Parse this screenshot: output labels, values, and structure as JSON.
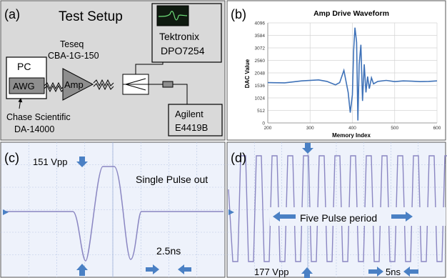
{
  "panels": {
    "a": {
      "label": "(a)",
      "title": "Test Setup",
      "pc": "PC",
      "awg": "AWG",
      "amp": "Amp",
      "amp_maker": "Teseq",
      "amp_model": "CBA-1G-150",
      "scope_maker": "Tektronix",
      "scope_model": "DPO7254",
      "meter_maker": "Agilent",
      "meter_model": "E4419B",
      "awg_maker": "Chase Scientific",
      "awg_model": "DA-14000"
    },
    "b": {
      "label": "(b)",
      "title": "Amp Drive Waveform",
      "ylabel": "DAC Value",
      "xlabel": "Memory Index",
      "yticks": [
        "4096",
        "3584",
        "3072",
        "2560",
        "2048",
        "1536",
        "1024",
        "512",
        "0"
      ],
      "xticks": [
        "200",
        "300",
        "400",
        "500",
        "600"
      ]
    },
    "c": {
      "label": "(c)",
      "vpp": "151 Vpp",
      "text": "Single Pulse out",
      "time": "2.5ns"
    },
    "d": {
      "label": "(d)",
      "text": "Five Pulse period",
      "vpp": "177 Vpp",
      "time": "5ns"
    }
  },
  "colors": {
    "accent": "#4a80c4",
    "scope_bg": "#eef2fb",
    "scope_grid": "#b9c6e4",
    "trace": "#8a86c2",
    "panel_a_bg": "#d9d9d9"
  },
  "chart_data": {
    "type": "line",
    "title": "Amp Drive Waveform",
    "xlabel": "Memory Index",
    "ylabel": "DAC Value",
    "xlim": [
      200,
      600
    ],
    "ylim": [
      0,
      4096
    ],
    "series": [
      {
        "x": [
          200,
          240,
          280,
          320,
          340,
          360,
          370,
          380,
          390,
          395,
          400,
          403,
          406,
          410,
          413,
          416,
          420,
          424,
          428,
          432,
          436,
          440,
          445,
          450,
          460,
          480,
          500,
          520,
          540,
          560,
          580,
          600
        ],
        "values": [
          1650,
          1640,
          1720,
          1760,
          1700,
          1560,
          1650,
          2150,
          1250,
          420,
          1150,
          3000,
          3900,
          3300,
          100,
          2400,
          3200,
          900,
          2400,
          1250,
          1900,
          1400,
          1850,
          1600,
          1700,
          1740,
          1690,
          1720,
          1710,
          1690,
          1700,
          1720
        ]
      }
    ]
  }
}
